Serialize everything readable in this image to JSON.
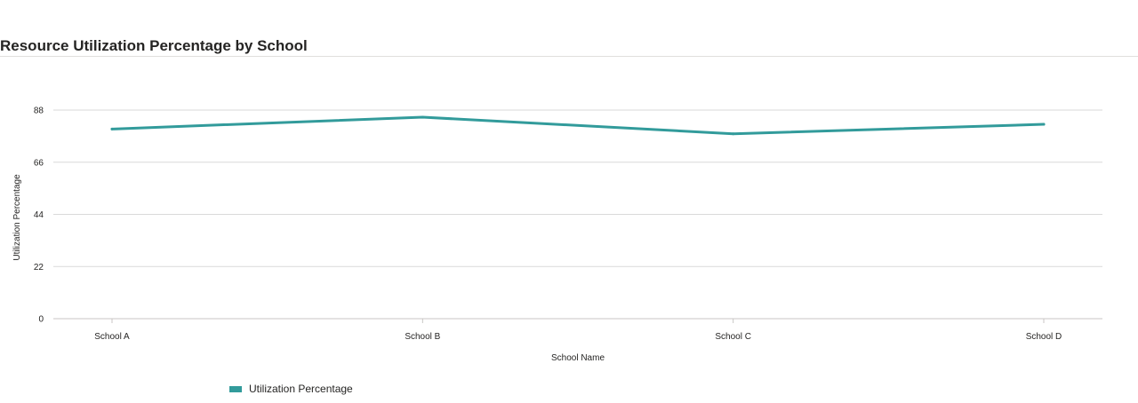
{
  "header": {
    "title": "Resource Utilization Percentage by School"
  },
  "legend": {
    "label": "Utilization Percentage"
  },
  "colors": {
    "series": "#329b9b",
    "grid": "#d9d9d9",
    "axis": "#c8c6c4"
  },
  "chart_data": {
    "type": "line",
    "title": "Resource Utilization Percentage by School",
    "xlabel": "School Name",
    "ylabel": "Utilization Percentage",
    "categories": [
      "School A",
      "School B",
      "School C",
      "School D"
    ],
    "ylim": [
      0,
      88
    ],
    "yticks": [
      0,
      22,
      44,
      66,
      88
    ],
    "grid": true,
    "legend_position": "bottom-left",
    "series": [
      {
        "name": "Utilization Percentage",
        "values": [
          80,
          85,
          78,
          82
        ]
      }
    ]
  }
}
